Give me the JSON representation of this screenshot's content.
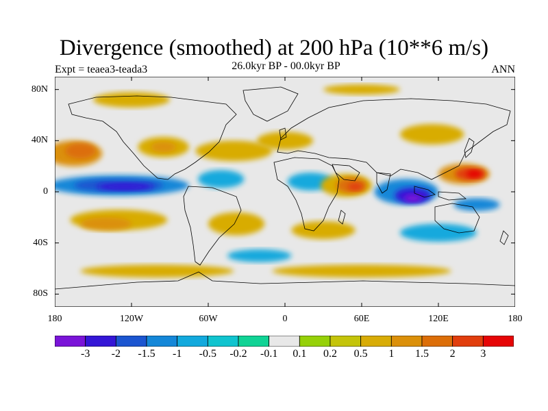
{
  "title": "Divergence (smoothed) at 200 hPa (10**6 m/s)",
  "experiment_label": "Expt = teaea3-teada3",
  "period_label": "26.0kyr BP - 00.0kyr BP",
  "season_label": "ANN",
  "map": {
    "projection": "cylindrical equidistant",
    "lon_range": [
      -180,
      180
    ],
    "lat_range": [
      -90,
      90
    ],
    "x_ticks": [
      {
        "lon": -180,
        "label": "180"
      },
      {
        "lon": -120,
        "label": "120W"
      },
      {
        "lon": -60,
        "label": "60W"
      },
      {
        "lon": 0,
        "label": "0"
      },
      {
        "lon": 60,
        "label": "60E"
      },
      {
        "lon": 120,
        "label": "120E"
      },
      {
        "lon": 180,
        "label": "180"
      }
    ],
    "y_ticks": [
      {
        "lat": 80,
        "label": "80N"
      },
      {
        "lat": 40,
        "label": "40N"
      },
      {
        "lat": 0,
        "label": "0"
      },
      {
        "lat": -40,
        "label": "40S"
      },
      {
        "lat": -80,
        "label": "80S"
      }
    ],
    "background_color": "#e8e8e8",
    "anomaly_regions": [
      {
        "lon": -165,
        "lat": 30,
        "rlon": 22,
        "rlat": 10,
        "level": 1
      },
      {
        "lon": -160,
        "lat": 32,
        "rlon": 12,
        "rlat": 6,
        "level": 1.5
      },
      {
        "lon": -95,
        "lat": 35,
        "rlon": 20,
        "rlat": 8,
        "level": 0.5
      },
      {
        "lon": -95,
        "lat": 35,
        "rlon": 10,
        "rlat": 4,
        "level": 1
      },
      {
        "lon": -130,
        "lat": 5,
        "rlon": 55,
        "rlat": 8,
        "level": -1
      },
      {
        "lon": -130,
        "lat": 5,
        "rlon": 35,
        "rlat": 5,
        "level": -1.5
      },
      {
        "lon": -125,
        "lat": 4,
        "rlon": 22,
        "rlat": 3,
        "level": -2
      },
      {
        "lon": -130,
        "lat": -22,
        "rlon": 38,
        "rlat": 8,
        "level": 0.5
      },
      {
        "lon": -140,
        "lat": -25,
        "rlon": 20,
        "rlat": 5,
        "level": 1
      },
      {
        "lon": -40,
        "lat": 32,
        "rlon": 30,
        "rlat": 8,
        "level": 0.5
      },
      {
        "lon": -50,
        "lat": 10,
        "rlon": 18,
        "rlat": 7,
        "level": -0.5
      },
      {
        "lon": -38,
        "lat": -25,
        "rlon": 22,
        "rlat": 9,
        "level": 0.5
      },
      {
        "lon": 0,
        "lat": 40,
        "rlon": 22,
        "rlat": 7,
        "level": 0.5
      },
      {
        "lon": 20,
        "lat": 8,
        "rlon": 18,
        "rlat": 7,
        "level": -0.5
      },
      {
        "lon": 48,
        "lat": 5,
        "rlon": 20,
        "rlat": 9,
        "level": 0.5
      },
      {
        "lon": 52,
        "lat": 5,
        "rlon": 12,
        "rlat": 6,
        "level": 1.5
      },
      {
        "lon": 55,
        "lat": 4,
        "rlon": 6,
        "rlat": 3,
        "level": 2
      },
      {
        "lon": 30,
        "lat": -30,
        "rlon": 25,
        "rlat": 7,
        "level": 0.5
      },
      {
        "lon": 95,
        "lat": 0,
        "rlon": 25,
        "rlat": 10,
        "level": -1
      },
      {
        "lon": 100,
        "lat": -3,
        "rlon": 14,
        "rlat": 6,
        "level": -2
      },
      {
        "lon": 100,
        "lat": -5,
        "rlon": 7,
        "rlat": 3,
        "level": -3
      },
      {
        "lon": 115,
        "lat": 45,
        "rlon": 25,
        "rlat": 8,
        "level": 0.5
      },
      {
        "lon": 140,
        "lat": 14,
        "rlon": 20,
        "rlat": 8,
        "level": 1
      },
      {
        "lon": 145,
        "lat": 14,
        "rlon": 12,
        "rlat": 5,
        "level": 2
      },
      {
        "lon": 148,
        "lat": 14,
        "rlon": 6,
        "rlat": 3,
        "level": 3
      },
      {
        "lon": 150,
        "lat": -10,
        "rlon": 18,
        "rlat": 5,
        "level": -1
      },
      {
        "lon": 120,
        "lat": -32,
        "rlon": 30,
        "rlat": 7,
        "level": -0.5
      },
      {
        "lon": -100,
        "lat": -62,
        "rlon": 60,
        "rlat": 5,
        "level": 0.5
      },
      {
        "lon": 60,
        "lat": -62,
        "rlon": 70,
        "rlat": 5,
        "level": 0.5
      },
      {
        "lon": -120,
        "lat": 72,
        "rlon": 30,
        "rlat": 6,
        "level": 0.5
      },
      {
        "lon": 60,
        "lat": 80,
        "rlon": 30,
        "rlat": 4,
        "level": 0.5
      },
      {
        "lon": -20,
        "lat": -50,
        "rlon": 25,
        "rlat": 5,
        "level": -0.5
      }
    ]
  },
  "colorbar": {
    "colors": [
      "#7a14d8",
      "#3416d6",
      "#1b55d0",
      "#1487d8",
      "#12a9dd",
      "#10c4cf",
      "#10d395",
      "#e8e8e8",
      "#96d108",
      "#c4c40a",
      "#d8ac06",
      "#db900a",
      "#dc6e08",
      "#e13e0d",
      "#e60506"
    ],
    "labels": [
      "-3",
      "-2",
      "-1.5",
      "-1",
      "-0.5",
      "-0.2",
      "-0.1",
      "0.1",
      "0.2",
      "0.5",
      "1",
      "1.5",
      "2",
      "3"
    ],
    "levels": [
      -3,
      -2,
      -1.5,
      -1,
      -0.5,
      -0.2,
      -0.1,
      0.1,
      0.2,
      0.5,
      1,
      1.5,
      2,
      3
    ]
  }
}
